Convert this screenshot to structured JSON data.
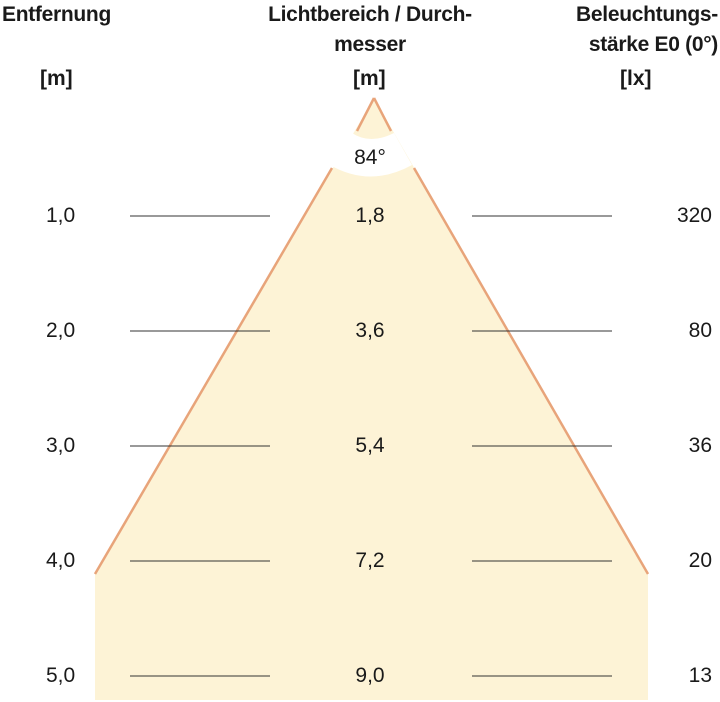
{
  "headers": {
    "distance": {
      "title": "Entfernung",
      "unit": "[m]"
    },
    "light_range": {
      "title_line1": "Lichtbereich / Durch-",
      "title_line2": "messer",
      "unit": "[m]"
    },
    "illuminance": {
      "title_line1": "Beleuchtungs-",
      "title_line2": "stärke E0 (0°)",
      "unit": "[lx]"
    }
  },
  "beam_angle": "84°",
  "rows": [
    {
      "distance": "1,0",
      "diameter": "1,8",
      "lux": "320"
    },
    {
      "distance": "2,0",
      "diameter": "3,6",
      "lux": "80"
    },
    {
      "distance": "3,0",
      "diameter": "5,4",
      "lux": "36"
    },
    {
      "distance": "4,0",
      "diameter": "7,2",
      "lux": "20"
    },
    {
      "distance": "5,0",
      "diameter": "9,0",
      "lux": "13"
    }
  ],
  "colors": {
    "cone_fill": "#fdf3d6",
    "cone_edge": "#e8a47a",
    "guide_line": "#333333"
  }
}
